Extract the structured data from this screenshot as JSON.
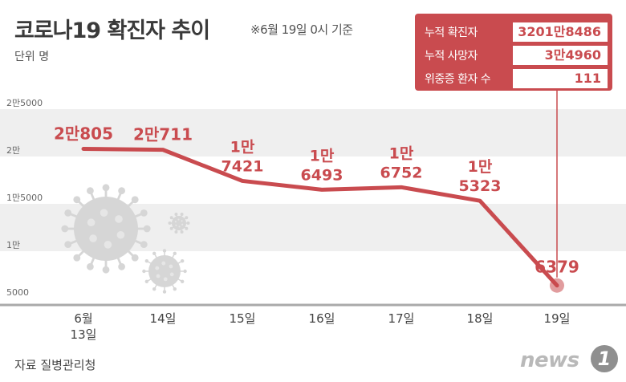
{
  "header": {
    "title": "코로나19 확진자 추이",
    "note": "※6월 19일 0시 기준",
    "unit": "단위 명"
  },
  "source": "자료 질병관리청",
  "logo": {
    "word": "news",
    "badge": "1"
  },
  "stats_box": {
    "rows": [
      {
        "label": "누적 확진자",
        "value": "3201만8486"
      },
      {
        "label": "누적 사망자",
        "value": "3만4960"
      },
      {
        "label": "위중증 환자 수",
        "value": "111"
      }
    ]
  },
  "chart_data": {
    "type": "line",
    "title": "코로나19 확진자 추이",
    "ylabel": "단위 명",
    "ylim": [
      5000,
      25000
    ],
    "yticks": [
      {
        "value": 25000,
        "label": "2만5000"
      },
      {
        "value": 20000,
        "label": "2만"
      },
      {
        "value": 15000,
        "label": "1만5000"
      },
      {
        "value": 10000,
        "label": "1만"
      },
      {
        "value": 5000,
        "label": "5000"
      }
    ],
    "categories": [
      "6월\n13일",
      "14일",
      "15일",
      "16일",
      "17일",
      "18일",
      "19일"
    ],
    "values": [
      20805,
      20711,
      17421,
      16493,
      16752,
      15323,
      6379
    ],
    "data_labels": [
      "2만805",
      "2만711",
      "1만\n7421",
      "1만\n6493",
      "1만\n6752",
      "1만\n5323",
      "6379"
    ],
    "colors": {
      "line": "#c94b4f",
      "label": "#c94b4f",
      "band": "#efefef",
      "axis": "#aaaaaa",
      "virus": "#d6d6d6"
    }
  }
}
